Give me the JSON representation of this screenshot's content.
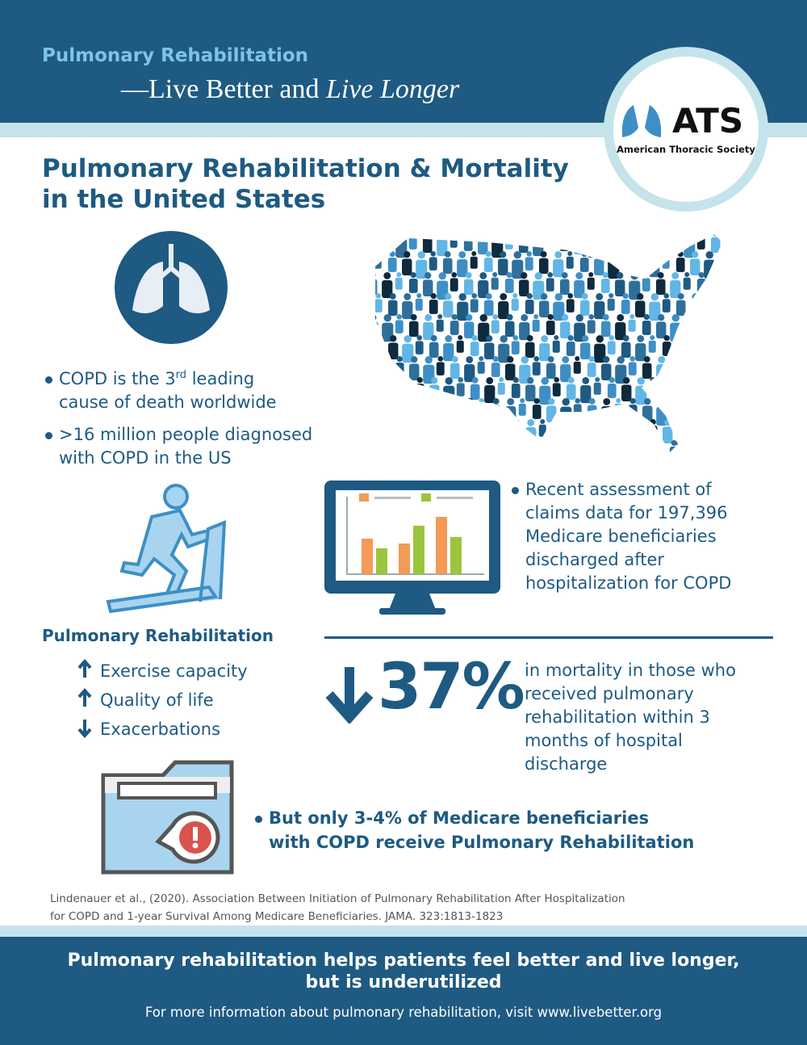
{
  "header": {
    "kicker": "Pulmonary Rehabilitation",
    "tagline_plain": "—Live Better and",
    "tagline_italic": "Live Longer"
  },
  "logo": {
    "abbr": "ATS",
    "name": "American Thoracic Society"
  },
  "title": {
    "lines": [
      "Pulmonary Rehabilitation & Mortality",
      "in the United States"
    ]
  },
  "facts": {
    "fact1": {
      "line1_before": "COPD is the 3",
      "line1_sup": "rd",
      "line1_after": "leading",
      "line2": "cause of death worldwide"
    },
    "fact2": {
      "lines": [
        ">16 million people diagnosed",
        "with COPD in the US"
      ]
    }
  },
  "claims": {
    "lines": [
      "Recent assessment of",
      "claims data for 197,396",
      "Medicare beneficiaries",
      "discharged after",
      "hospitalization for COPD"
    ]
  },
  "rehab": {
    "heading": "Pulmonary Rehabilitation",
    "items": [
      "Exercise capacity",
      "Quality of life",
      "Exacerbations"
    ]
  },
  "stat": {
    "value": "37%",
    "lines": [
      "in mortality in those who",
      "received pulmonary",
      "rehabilitation within 3",
      "months of hospital",
      "discharge"
    ]
  },
  "warning": {
    "lines": [
      "But only 3-4% of Medicare beneficiaries",
      "with COPD receive Pulmonary Rehabilitation"
    ]
  },
  "citation": {
    "lines": [
      "Lindenauer et al., (2020). Association Between Initiation of Pulmonary Rehabilitation After Hospitalization",
      "for COPD and 1-year Survival Among Medicare Beneficiaries. JAMA. 323:1813-1823"
    ]
  },
  "footer": {
    "headline": [
      "Pulmonary rehabilitation helps patients feel better and live longer,",
      "but is underutilized"
    ],
    "note": "For more information about pulmonary rehabilitation, visit www.livebetter.org"
  }
}
